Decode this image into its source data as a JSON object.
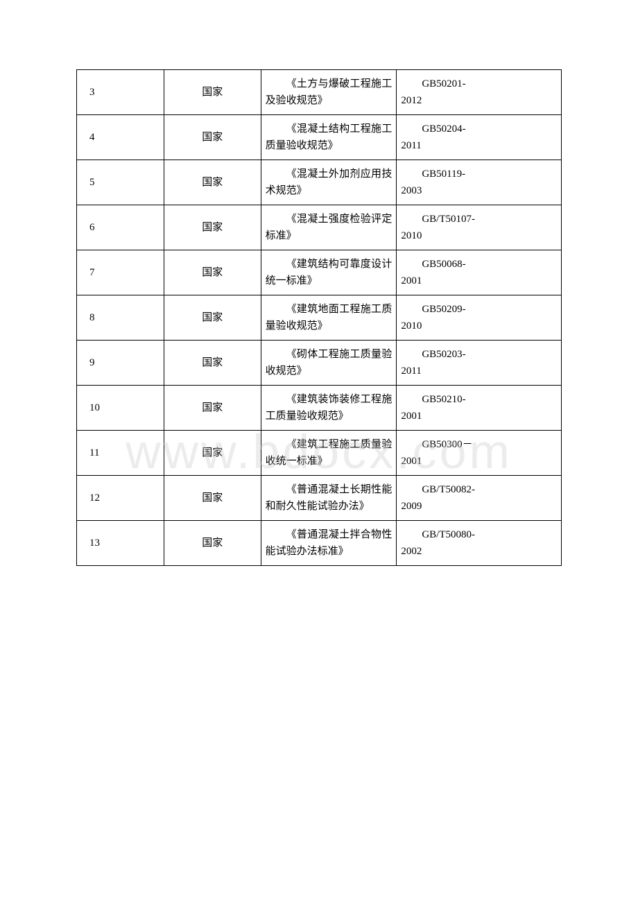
{
  "watermark": "www.bdocx.com",
  "rows": [
    {
      "num": "3",
      "type": "国家",
      "name": "《土方与爆破工程施工及验收规范》",
      "code_main": "GB50201-",
      "code_year": "2012"
    },
    {
      "num": "4",
      "type": "国家",
      "name": "《混凝土结构工程施工质量验收规范》",
      "code_main": "GB50204-",
      "code_year": "2011"
    },
    {
      "num": "5",
      "type": "国家",
      "name": "《混凝土外加剂应用技术规范》",
      "code_main": "GB50119-",
      "code_year": "2003"
    },
    {
      "num": "6",
      "type": "国家",
      "name": "《混凝土强度检验评定标准》",
      "code_main": "GB/T50107-",
      "code_year": "2010"
    },
    {
      "num": "7",
      "type": "国家",
      "name": "《建筑结构可靠度设计统一标准》",
      "code_main": "GB50068-",
      "code_year": "2001"
    },
    {
      "num": "8",
      "type": "国家",
      "name": "《建筑地面工程施工质量验收规范》",
      "code_main": "GB50209-",
      "code_year": "2010"
    },
    {
      "num": "9",
      "type": "国家",
      "name": "《砌体工程施工质量验收规范》",
      "code_main": "GB50203-",
      "code_year": "2011"
    },
    {
      "num": "10",
      "type": "国家",
      "name": "《建筑装饰装修工程施工质量验收规范》",
      "code_main": "GB50210-",
      "code_year": "2001"
    },
    {
      "num": "11",
      "type": "国家",
      "name": "《建筑工程施工质量验收统一标准》",
      "code_main": "GB50300－",
      "code_year": "2001"
    },
    {
      "num": "12",
      "type": "国家",
      "name": "《普通混凝土长期性能和耐久性能试验办法》",
      "code_main": "GB/T50082-",
      "code_year": "2009"
    },
    {
      "num": "13",
      "type": "国家",
      "name": "《普通混凝土拌合物性能试验办法标准》",
      "code_main": "GB/T50080-",
      "code_year": "2002"
    }
  ],
  "colors": {
    "background": "#ffffff",
    "border": "#000000",
    "text": "#000000",
    "watermark": "rgba(200,200,200,0.35)"
  },
  "font": {
    "family": "SimSun",
    "size_body": 15,
    "size_watermark": 70
  }
}
